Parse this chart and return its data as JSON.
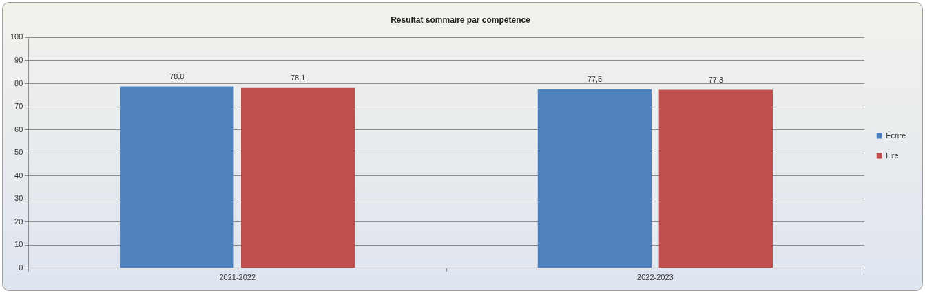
{
  "chart_data": {
    "type": "bar",
    "title": "Résultat sommaire par compétence",
    "categories": [
      "2021-2022",
      "2022-2023"
    ],
    "series": [
      {
        "name": "Écrire",
        "color": "#4f81bd",
        "values": [
          78.8,
          77.5
        ],
        "value_labels": [
          "78,8",
          "77,5"
        ]
      },
      {
        "name": "Lire",
        "color": "#c0504d",
        "values": [
          78.1,
          77.3
        ],
        "value_labels": [
          "78,1",
          "77,3"
        ]
      }
    ],
    "ylim": [
      0,
      100
    ],
    "yticks": [
      0,
      10,
      20,
      30,
      40,
      50,
      60,
      70,
      80,
      90,
      100
    ],
    "grid": "y",
    "legend": "right"
  }
}
